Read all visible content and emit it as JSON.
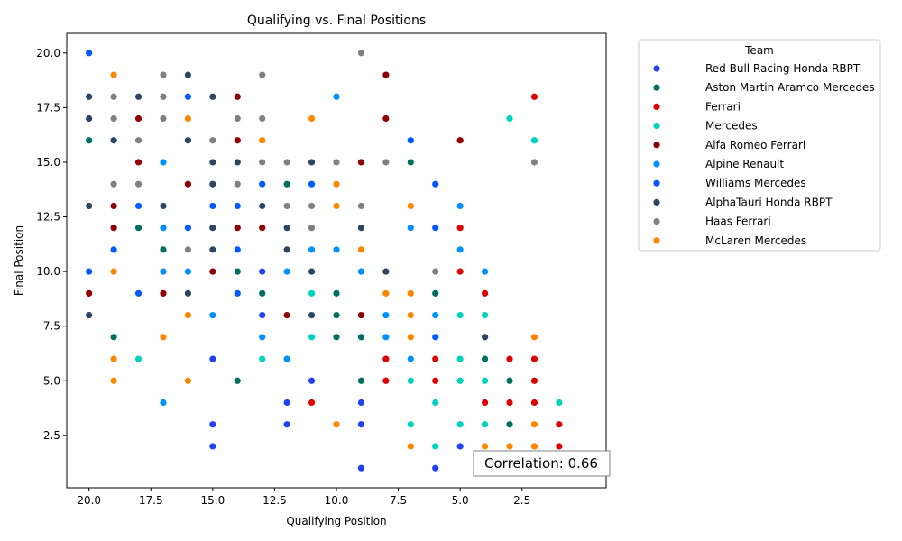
{
  "chart_data": {
    "type": "scatter",
    "title": "Qualifying vs. Final Positions",
    "xlabel": "Qualifying Position",
    "ylabel": "Final Position",
    "xlim": [
      20.9,
      -0.9
    ],
    "ylim": [
      20.9,
      0.1
    ],
    "x_ticks": [
      20.0,
      17.5,
      15.0,
      12.5,
      10.0,
      7.5,
      5.0,
      2.5
    ],
    "x_tick_labels": [
      "20.0",
      "17.5",
      "15.0",
      "12.5",
      "10.0",
      "7.5",
      "5.0",
      "2.5"
    ],
    "y_ticks": [
      2.5,
      5.0,
      7.5,
      10.0,
      12.5,
      15.0,
      17.5,
      20.0
    ],
    "y_tick_labels": [
      "2.5",
      "5.0",
      "7.5",
      "10.0",
      "12.5",
      "15.0",
      "17.5",
      "20.0"
    ],
    "grid": false,
    "legend_title": "Team",
    "legend_placement": "outside-upper-right",
    "annotation": "Correlation: 0.66",
    "series": [
      {
        "name": "Red Bull Racing Honda RBPT",
        "color": "#2241F2",
        "points": [
          [
            1,
            1
          ],
          [
            2,
            1
          ],
          [
            3,
            1
          ],
          [
            5,
            2
          ],
          [
            6,
            1
          ],
          [
            9,
            1
          ],
          [
            9,
            3
          ],
          [
            9,
            4
          ],
          [
            11,
            5
          ],
          [
            12,
            3
          ],
          [
            12,
            4
          ],
          [
            13,
            8
          ],
          [
            13,
            10
          ],
          [
            15,
            2
          ],
          [
            15,
            3
          ],
          [
            15,
            6
          ]
        ]
      },
      {
        "name": "Aston Martin Aramco Mercedes",
        "color": "#006F62",
        "points": [
          [
            3,
            3
          ],
          [
            3,
            5
          ],
          [
            4,
            6
          ],
          [
            6,
            9
          ],
          [
            7,
            15
          ],
          [
            9,
            5
          ],
          [
            9,
            7
          ],
          [
            10,
            7
          ],
          [
            10,
            8
          ],
          [
            10,
            9
          ],
          [
            12,
            14
          ],
          [
            13,
            9
          ],
          [
            14,
            5
          ],
          [
            14,
            10
          ],
          [
            17,
            11
          ],
          [
            18,
            12
          ],
          [
            19,
            7
          ],
          [
            20,
            16
          ]
        ]
      },
      {
        "name": "Ferrari",
        "color": "#DC0000",
        "points": [
          [
            1,
            2
          ],
          [
            1,
            3
          ],
          [
            2,
            2
          ],
          [
            2,
            4
          ],
          [
            2,
            5
          ],
          [
            2,
            6
          ],
          [
            2,
            18
          ],
          [
            3,
            4
          ],
          [
            3,
            6
          ],
          [
            4,
            4
          ],
          [
            4,
            9
          ],
          [
            5,
            10
          ],
          [
            5,
            12
          ],
          [
            6,
            5
          ],
          [
            6,
            6
          ],
          [
            8,
            5
          ],
          [
            8,
            6
          ],
          [
            11,
            4
          ]
        ]
      },
      {
        "name": "Mercedes",
        "color": "#00D2BE",
        "points": [
          [
            1,
            4
          ],
          [
            2,
            16
          ],
          [
            3,
            17
          ],
          [
            4,
            3
          ],
          [
            4,
            5
          ],
          [
            4,
            8
          ],
          [
            5,
            3
          ],
          [
            5,
            5
          ],
          [
            5,
            6
          ],
          [
            5,
            8
          ],
          [
            6,
            2
          ],
          [
            6,
            4
          ],
          [
            7,
            3
          ],
          [
            7,
            5
          ],
          [
            11,
            7
          ],
          [
            11,
            9
          ],
          [
            13,
            6
          ],
          [
            18,
            6
          ]
        ]
      },
      {
        "name": "Alfa Romeo Ferrari",
        "color": "#900000",
        "points": [
          [
            5,
            16
          ],
          [
            8,
            17
          ],
          [
            8,
            19
          ],
          [
            9,
            8
          ],
          [
            9,
            15
          ],
          [
            12,
            8
          ],
          [
            13,
            12
          ],
          [
            14,
            12
          ],
          [
            14,
            16
          ],
          [
            14,
            18
          ],
          [
            15,
            10
          ],
          [
            16,
            14
          ],
          [
            17,
            9
          ],
          [
            18,
            15
          ],
          [
            18,
            17
          ],
          [
            19,
            12
          ],
          [
            19,
            13
          ],
          [
            20,
            9
          ]
        ]
      },
      {
        "name": "Alpine Renault",
        "color": "#0090FF",
        "points": [
          [
            4,
            10
          ],
          [
            5,
            11
          ],
          [
            5,
            13
          ],
          [
            6,
            8
          ],
          [
            7,
            6
          ],
          [
            7,
            12
          ],
          [
            8,
            7
          ],
          [
            8,
            8
          ],
          [
            9,
            10
          ],
          [
            10,
            11
          ],
          [
            10,
            18
          ],
          [
            11,
            11
          ],
          [
            12,
            6
          ],
          [
            12,
            10
          ],
          [
            13,
            7
          ],
          [
            15,
            8
          ],
          [
            16,
            10
          ],
          [
            17,
            4
          ],
          [
            17,
            10
          ],
          [
            17,
            12
          ],
          [
            17,
            15
          ]
        ]
      },
      {
        "name": "Williams Mercedes",
        "color": "#005AFF",
        "points": [
          [
            6,
            7
          ],
          [
            6,
            12
          ],
          [
            6,
            14
          ],
          [
            7,
            16
          ],
          [
            11,
            14
          ],
          [
            13,
            14
          ],
          [
            14,
            9
          ],
          [
            14,
            11
          ],
          [
            14,
            13
          ],
          [
            15,
            13
          ],
          [
            16,
            12
          ],
          [
            16,
            18
          ],
          [
            18,
            9
          ],
          [
            18,
            13
          ],
          [
            19,
            11
          ],
          [
            20,
            10
          ],
          [
            20,
            20
          ]
        ]
      },
      {
        "name": "AlphaTauri Honda RBPT",
        "color": "#2B4562",
        "points": [
          [
            4,
            7
          ],
          [
            8,
            10
          ],
          [
            9,
            12
          ],
          [
            11,
            8
          ],
          [
            11,
            10
          ],
          [
            11,
            15
          ],
          [
            12,
            11
          ],
          [
            12,
            12
          ],
          [
            13,
            13
          ],
          [
            14,
            15
          ],
          [
            15,
            11
          ],
          [
            15,
            12
          ],
          [
            15,
            14
          ],
          [
            15,
            15
          ],
          [
            15,
            18
          ],
          [
            16,
            9
          ],
          [
            16,
            16
          ],
          [
            16,
            19
          ],
          [
            17,
            13
          ],
          [
            18,
            18
          ],
          [
            19,
            16
          ],
          [
            20,
            8
          ],
          [
            20,
            13
          ],
          [
            20,
            17
          ],
          [
            20,
            18
          ]
        ]
      },
      {
        "name": "Haas Ferrari",
        "color": "#808080",
        "points": [
          [
            2,
            15
          ],
          [
            6,
            10
          ],
          [
            8,
            15
          ],
          [
            9,
            13
          ],
          [
            9,
            20
          ],
          [
            10,
            15
          ],
          [
            11,
            12
          ],
          [
            11,
            13
          ],
          [
            12,
            13
          ],
          [
            12,
            15
          ],
          [
            13,
            15
          ],
          [
            13,
            17
          ],
          [
            13,
            19
          ],
          [
            14,
            14
          ],
          [
            14,
            17
          ],
          [
            15,
            16
          ],
          [
            16,
            11
          ],
          [
            17,
            17
          ],
          [
            17,
            18
          ],
          [
            17,
            19
          ],
          [
            18,
            14
          ],
          [
            18,
            16
          ],
          [
            19,
            14
          ],
          [
            19,
            17
          ],
          [
            19,
            18
          ]
        ]
      },
      {
        "name": "McLaren Mercedes",
        "color": "#FF8700",
        "points": [
          [
            2,
            2
          ],
          [
            2,
            3
          ],
          [
            2,
            7
          ],
          [
            3,
            2
          ],
          [
            4,
            2
          ],
          [
            7,
            2
          ],
          [
            7,
            7
          ],
          [
            7,
            8
          ],
          [
            7,
            9
          ],
          [
            7,
            13
          ],
          [
            8,
            9
          ],
          [
            9,
            11
          ],
          [
            10,
            3
          ],
          [
            10,
            13
          ],
          [
            10,
            14
          ],
          [
            11,
            17
          ],
          [
            13,
            16
          ],
          [
            16,
            5
          ],
          [
            16,
            8
          ],
          [
            16,
            17
          ],
          [
            17,
            7
          ],
          [
            19,
            5
          ],
          [
            19,
            6
          ],
          [
            19,
            10
          ],
          [
            19,
            19
          ]
        ]
      }
    ]
  }
}
